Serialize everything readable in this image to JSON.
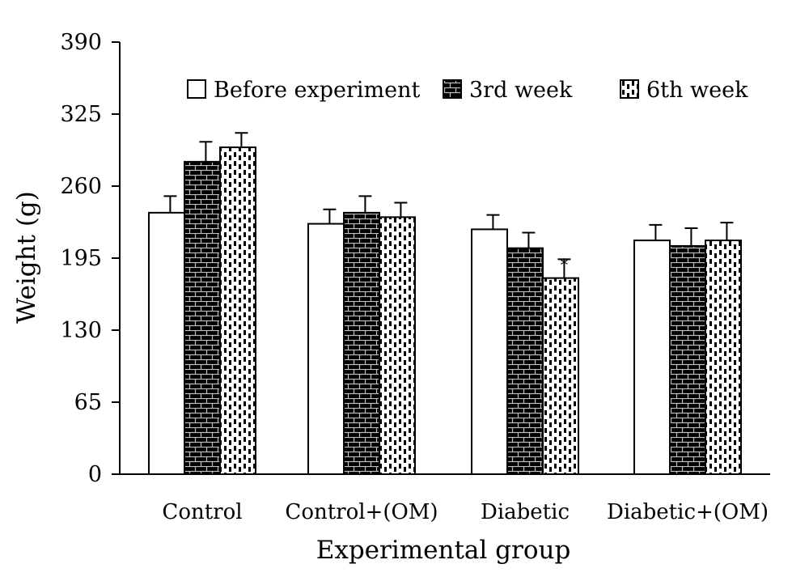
{
  "chart_data": {
    "type": "bar",
    "title": "",
    "xlabel": "Experimental group",
    "ylabel": "Weight (g)",
    "ylim": [
      0,
      390
    ],
    "yticks": [
      "0",
      "65",
      "130",
      "195",
      "260",
      "325",
      "390"
    ],
    "categories": [
      "Control",
      "Control+(OM)",
      "Diabetic",
      "Diabetic+(OM)"
    ],
    "legend_position": "top",
    "series": [
      {
        "name": "Before experiment",
        "pattern": "white",
        "values": [
          236,
          226,
          221,
          211
        ],
        "errors": [
          15,
          13,
          13,
          14
        ]
      },
      {
        "name": "3rd week",
        "pattern": "black-brick",
        "values": [
          282,
          236,
          204,
          206
        ],
        "errors": [
          18,
          15,
          14,
          16
        ]
      },
      {
        "name": "6th week",
        "pattern": "dotted",
        "values": [
          295,
          232,
          177,
          211
        ],
        "errors": [
          13,
          13,
          17,
          16
        ]
      }
    ],
    "annotations": [
      {
        "category": "Diabetic",
        "series": "6th week",
        "text": "*"
      }
    ],
    "colors": {
      "axis": "#000000",
      "bar_fill_dark": "#000000",
      "bar_fill_light": "#ffffff",
      "brick_line": "#bfbfbf"
    }
  }
}
